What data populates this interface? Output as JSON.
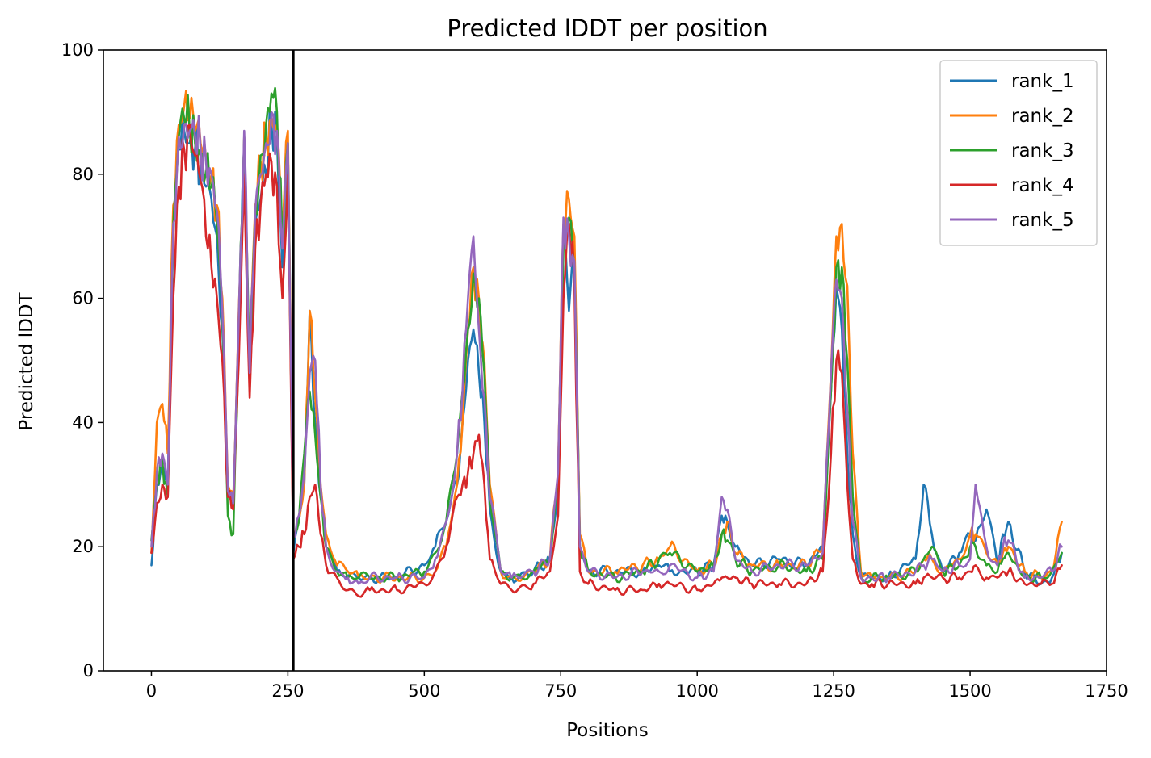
{
  "chart_data": {
    "type": "line",
    "title": "Predicted lDDT per position",
    "xlabel": "Positions",
    "ylabel": "Predicted lDDT",
    "xlim": [
      -88,
      1750
    ],
    "ylim": [
      0,
      100
    ],
    "xticks": [
      0,
      250,
      500,
      750,
      1000,
      1250,
      1500,
      1750
    ],
    "yticks": [
      0,
      20,
      40,
      60,
      80,
      100
    ],
    "grid": false,
    "legend_position": "top-right",
    "vline": {
      "x": 260,
      "color": "#000000"
    },
    "x": [
      0,
      10,
      20,
      30,
      40,
      50,
      60,
      70,
      80,
      90,
      100,
      110,
      120,
      130,
      140,
      150,
      160,
      170,
      180,
      190,
      200,
      210,
      220,
      230,
      240,
      250,
      260,
      270,
      280,
      290,
      300,
      310,
      320,
      340,
      360,
      380,
      400,
      450,
      500,
      520,
      540,
      560,
      570,
      580,
      590,
      600,
      610,
      620,
      640,
      660,
      700,
      730,
      745,
      755,
      765,
      775,
      785,
      800,
      850,
      900,
      930,
      950,
      1000,
      1030,
      1045,
      1055,
      1070,
      1100,
      1150,
      1200,
      1230,
      1245,
      1255,
      1265,
      1275,
      1285,
      1300,
      1320,
      1350,
      1400,
      1415,
      1430,
      1450,
      1480,
      1500,
      1510,
      1530,
      1550,
      1560,
      1570,
      1600,
      1630,
      1650,
      1668
    ],
    "series": [
      {
        "name": "rank_1",
        "color": "#1f77b4",
        "values": [
          17,
          30,
          33,
          30,
          70,
          84,
          87,
          85,
          84,
          80,
          78,
          76,
          70,
          55,
          28,
          27,
          55,
          85,
          46,
          72,
          76,
          80,
          88,
          86,
          65,
          84,
          19,
          24,
          30,
          58,
          40,
          28,
          20,
          16,
          15,
          15,
          15,
          15,
          17,
          20,
          24,
          30,
          40,
          50,
          55,
          48,
          40,
          26,
          16,
          15,
          16,
          18,
          30,
          70,
          58,
          68,
          20,
          16,
          16,
          16,
          17,
          16,
          16,
          17,
          25,
          24,
          20,
          17,
          18,
          17,
          20,
          45,
          62,
          55,
          35,
          22,
          15,
          15,
          15,
          18,
          30,
          22,
          16,
          19,
          22,
          21,
          26,
          17,
          22,
          24,
          16,
          14,
          15,
          19
        ]
      },
      {
        "name": "rank_2",
        "color": "#ff7f0e",
        "values": [
          19,
          40,
          43,
          35,
          75,
          88,
          91,
          89,
          87,
          85,
          83,
          80,
          75,
          60,
          30,
          28,
          58,
          86,
          50,
          75,
          82,
          87,
          89,
          88,
          70,
          87,
          22,
          24,
          30,
          58,
          44,
          30,
          22,
          17,
          16,
          15,
          15,
          15,
          15,
          16,
          20,
          30,
          40,
          55,
          65,
          60,
          50,
          30,
          16,
          15,
          16,
          18,
          32,
          72,
          76,
          70,
          22,
          16,
          16,
          17,
          18,
          20,
          16,
          17,
          22,
          24,
          19,
          17,
          17,
          17,
          20,
          48,
          70,
          72,
          62,
          35,
          16,
          15,
          15,
          16,
          18,
          18,
          16,
          18,
          22,
          22,
          19,
          17,
          19,
          20,
          16,
          15,
          16,
          24
        ]
      },
      {
        "name": "rank_3",
        "color": "#2ca02c",
        "values": [
          21,
          30,
          34,
          28,
          72,
          86,
          89,
          87,
          85,
          83,
          80,
          78,
          72,
          57,
          25,
          22,
          55,
          86,
          48,
          74,
          83,
          88,
          93,
          90,
          68,
          85,
          21,
          24,
          35,
          45,
          38,
          28,
          20,
          16,
          15,
          15,
          15,
          15,
          16,
          19,
          24,
          35,
          45,
          55,
          64,
          60,
          48,
          28,
          16,
          15,
          16,
          18,
          30,
          68,
          73,
          65,
          20,
          16,
          15,
          16,
          18,
          19,
          16,
          17,
          22,
          21,
          18,
          16,
          17,
          16,
          18,
          45,
          65,
          65,
          50,
          28,
          15,
          15,
          15,
          16,
          18,
          20,
          16,
          17,
          20,
          20,
          17,
          16,
          18,
          19,
          15,
          15,
          16,
          19
        ]
      },
      {
        "name": "rank_4",
        "color": "#d62728",
        "values": [
          19,
          27,
          30,
          28,
          60,
          78,
          84,
          88,
          83,
          79,
          70,
          65,
          60,
          50,
          28,
          26,
          50,
          80,
          44,
          68,
          75,
          80,
          82,
          78,
          60,
          80,
          18,
          20,
          22,
          28,
          30,
          22,
          17,
          15,
          13,
          12,
          13,
          13,
          14,
          16,
          20,
          28,
          30,
          32,
          35,
          38,
          30,
          18,
          14,
          13,
          14,
          16,
          25,
          60,
          72,
          62,
          16,
          14,
          13,
          13,
          14,
          14,
          13,
          14,
          15,
          15,
          15,
          14,
          14,
          14,
          16,
          35,
          50,
          48,
          30,
          18,
          14,
          14,
          14,
          14,
          15,
          15,
          15,
          15,
          16,
          17,
          15,
          15,
          16,
          16,
          14,
          14,
          14,
          17
        ]
      },
      {
        "name": "rank_5",
        "color": "#9467bd",
        "values": [
          20,
          32,
          35,
          30,
          72,
          86,
          88,
          87,
          86,
          84,
          82,
          80,
          74,
          58,
          29,
          27,
          57,
          87,
          48,
          74,
          80,
          85,
          90,
          87,
          68,
          85,
          22,
          25,
          32,
          48,
          50,
          30,
          20,
          16,
          15,
          14,
          15,
          15,
          15,
          18,
          24,
          35,
          45,
          60,
          70,
          55,
          44,
          28,
          16,
          15,
          16,
          18,
          32,
          73,
          70,
          66,
          20,
          16,
          15,
          16,
          16,
          17,
          15,
          16,
          28,
          26,
          18,
          16,
          17,
          17,
          19,
          48,
          63,
          60,
          42,
          24,
          15,
          15,
          15,
          16,
          17,
          18,
          16,
          17,
          18,
          30,
          20,
          17,
          20,
          21,
          15,
          15,
          16,
          20
        ]
      }
    ]
  }
}
